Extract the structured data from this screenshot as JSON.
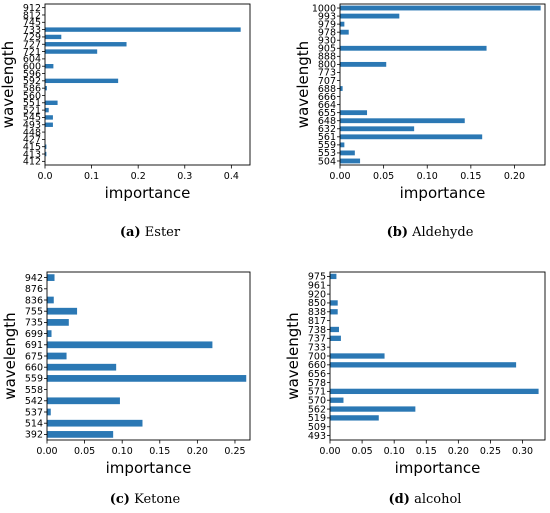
{
  "colors": {
    "bar": "#2b78b4",
    "axis": "#000000"
  },
  "chart_data": [
    {
      "type": "bar",
      "orientation": "horizontal",
      "caption_letter": "(a)",
      "caption_text": "Ester",
      "xlabel": "importance",
      "ylabel": "wavelength",
      "xlim": [
        0,
        0.44
      ],
      "xticks": [
        0.0,
        0.1,
        0.2,
        0.3,
        0.4
      ],
      "xtick_labels": [
        "0.0",
        "0.1",
        "0.2",
        "0.3",
        "0.4"
      ],
      "categories": [
        "912",
        "812",
        "745",
        "733",
        "729",
        "727",
        "721",
        "604",
        "600",
        "596",
        "592",
        "586",
        "560",
        "551",
        "521",
        "545",
        "493",
        "448",
        "427",
        "415",
        "413",
        "412"
      ],
      "values": [
        0.0,
        0.0,
        0.0,
        0.42,
        0.035,
        0.175,
        0.112,
        0.0,
        0.018,
        0.0,
        0.157,
        0.004,
        0.0,
        0.027,
        0.008,
        0.017,
        0.017,
        0.0,
        0.0,
        0.003,
        0.003,
        0.0
      ]
    },
    {
      "type": "bar",
      "orientation": "horizontal",
      "caption_letter": "(b)",
      "caption_text": "Aldehyde",
      "xlabel": "importance",
      "ylabel": "wavelength",
      "xlim": [
        0,
        0.235
      ],
      "xticks": [
        0.0,
        0.05,
        0.1,
        0.15,
        0.2
      ],
      "xtick_labels": [
        "0.00",
        "0.05",
        "0.10",
        "0.15",
        "0.20"
      ],
      "categories": [
        "1000",
        "993",
        "979",
        "978",
        "930",
        "905",
        "888",
        "800",
        "773",
        "707",
        "688",
        "666",
        "664",
        "655",
        "648",
        "632",
        "561",
        "559",
        "553",
        "504"
      ],
      "values": [
        0.23,
        0.068,
        0.005,
        0.01,
        0.0,
        0.168,
        0.0,
        0.053,
        0.0,
        0.0,
        0.003,
        0.0,
        0.0,
        0.031,
        0.143,
        0.085,
        0.163,
        0.005,
        0.017,
        0.023
      ]
    },
    {
      "type": "bar",
      "orientation": "horizontal",
      "caption_letter": "(c)",
      "caption_text": "Ketone",
      "xlabel": "importance",
      "ylabel": "wavelength",
      "xlim": [
        0,
        0.27
      ],
      "xticks": [
        0.0,
        0.05,
        0.1,
        0.15,
        0.2,
        0.25
      ],
      "xtick_labels": [
        "0.00",
        "0.05",
        "0.10",
        "0.15",
        "0.20",
        "0.25"
      ],
      "categories": [
        "942",
        "876",
        "836",
        "755",
        "735",
        "699",
        "691",
        "675",
        "660",
        "559",
        "558",
        "542",
        "537",
        "514",
        "392"
      ],
      "values": [
        0.01,
        0.0,
        0.009,
        0.04,
        0.029,
        0.006,
        0.22,
        0.026,
        0.092,
        0.265,
        0.0,
        0.097,
        0.005,
        0.127,
        0.088
      ]
    },
    {
      "type": "bar",
      "orientation": "horizontal",
      "caption_letter": "(d)",
      "caption_text": "alcohol",
      "xlabel": "importance",
      "ylabel": "wavelength",
      "xlim": [
        0,
        0.335
      ],
      "xticks": [
        0.0,
        0.05,
        0.1,
        0.15,
        0.2,
        0.25,
        0.3
      ],
      "xtick_labels": [
        "0.00",
        "0.05",
        "0.10",
        "0.15",
        "0.20",
        "0.25",
        "0.30"
      ],
      "categories": [
        "975",
        "961",
        "920",
        "850",
        "838",
        "817",
        "738",
        "737",
        "733",
        "700",
        "660",
        "656",
        "578",
        "571",
        "570",
        "562",
        "519",
        "509",
        "493"
      ],
      "values": [
        0.01,
        0.0,
        0.0,
        0.012,
        0.012,
        0.0,
        0.014,
        0.017,
        0.0,
        0.085,
        0.29,
        0.0,
        0.0,
        0.325,
        0.021,
        0.133,
        0.076,
        0.0,
        0.0
      ]
    }
  ]
}
